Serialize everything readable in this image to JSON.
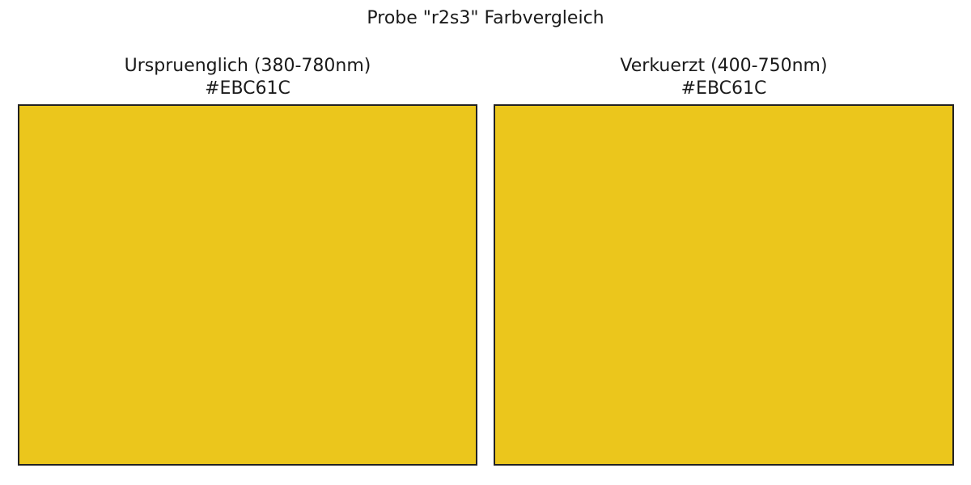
{
  "title": "Probe \"r2s3\" Farbvergleich",
  "panels": [
    {
      "label": "Urspruenglich (380-780nm)",
      "hex_label": "#EBC61C",
      "color": "#EBC61C"
    },
    {
      "label": "Verkuerzt (400-750nm)",
      "hex_label": "#EBC61C",
      "color": "#EBC61C"
    }
  ]
}
